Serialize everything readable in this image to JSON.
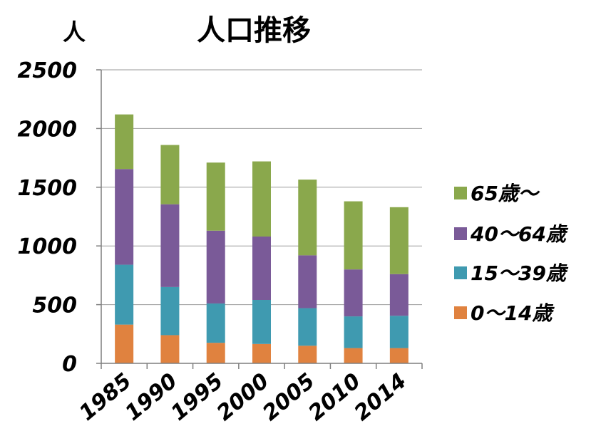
{
  "chart_data": {
    "type": "bar",
    "stacked": true,
    "title": "人口推移",
    "ylabel": "人",
    "xlabel": "",
    "categories": [
      "1985",
      "1990",
      "1995",
      "2000",
      "2005",
      "2010",
      "2014"
    ],
    "series": [
      {
        "name": "0～14歳",
        "color": "#e0823f",
        "values": [
          330,
          240,
          175,
          165,
          150,
          130,
          130
        ]
      },
      {
        "name": "15～39歳",
        "color": "#3f9ab0",
        "values": [
          510,
          410,
          335,
          375,
          320,
          270,
          275
        ]
      },
      {
        "name": "40～64歳",
        "color": "#7a5a98",
        "values": [
          815,
          705,
          620,
          540,
          450,
          400,
          355
        ]
      },
      {
        "name": "65歳～",
        "color": "#8aa84c",
        "values": [
          465,
          505,
          580,
          640,
          645,
          580,
          570
        ]
      }
    ],
    "ylim": [
      0,
      2500
    ],
    "yticks": [
      "0",
      "500",
      "1000",
      "1500",
      "2000",
      "2500"
    ],
    "grid": true,
    "legend_position": "right",
    "legend_order": [
      "65歳～",
      "40～64歳",
      "15～39歳",
      "0～14歳"
    ]
  }
}
